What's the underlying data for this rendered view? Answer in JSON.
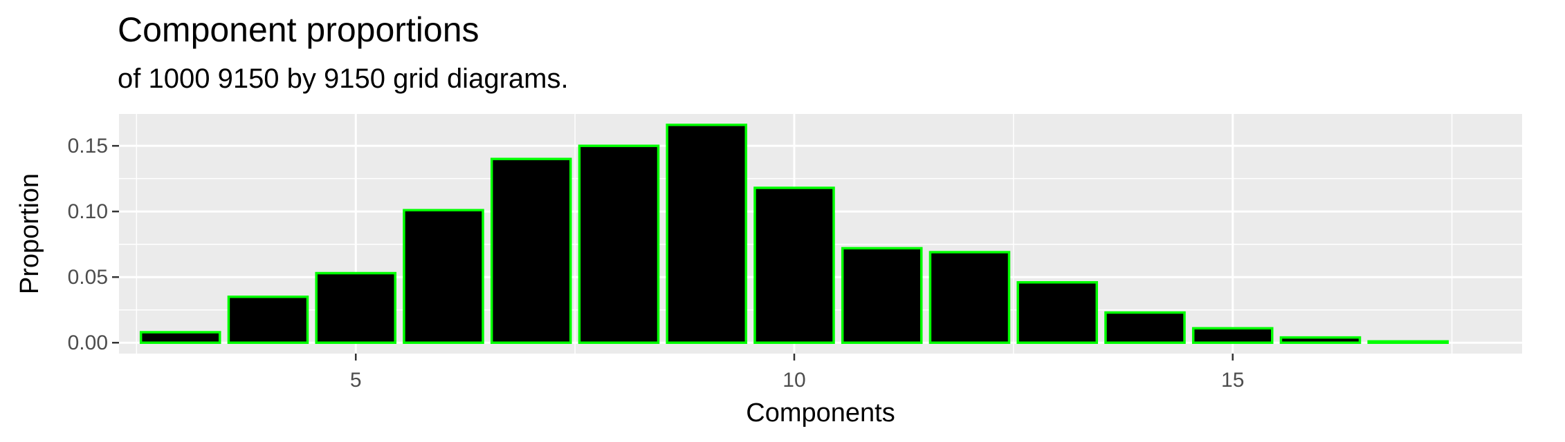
{
  "chart_data": {
    "type": "bar",
    "title": "Component proportions",
    "subtitle": "of 1000 9150 by 9150 grid diagrams.",
    "xlabel": "Components",
    "ylabel": "Proportion",
    "x": [
      3,
      4,
      5,
      6,
      7,
      8,
      9,
      10,
      11,
      12,
      13,
      14,
      15,
      16,
      17
    ],
    "values": [
      0.008,
      0.035,
      0.053,
      0.101,
      0.14,
      0.15,
      0.166,
      0.118,
      0.072,
      0.069,
      0.046,
      0.023,
      0.011,
      0.004,
      0.001
    ],
    "xlim": [
      2.3,
      18.3
    ],
    "ylim": [
      -0.0083,
      0.1743
    ],
    "x_ticks": [
      5,
      10,
      15
    ],
    "x_tick_labels": [
      "5",
      "10",
      "15"
    ],
    "y_ticks": [
      0,
      0.05,
      0.1,
      0.15
    ],
    "y_tick_labels": [
      "0.00",
      "0.05",
      "0.10",
      "0.15"
    ],
    "bar_fill": "#000000",
    "bar_outline": "#00ff00",
    "panel_background": "#ebebeb",
    "grid_color": "#ffffff",
    "grid": true
  }
}
